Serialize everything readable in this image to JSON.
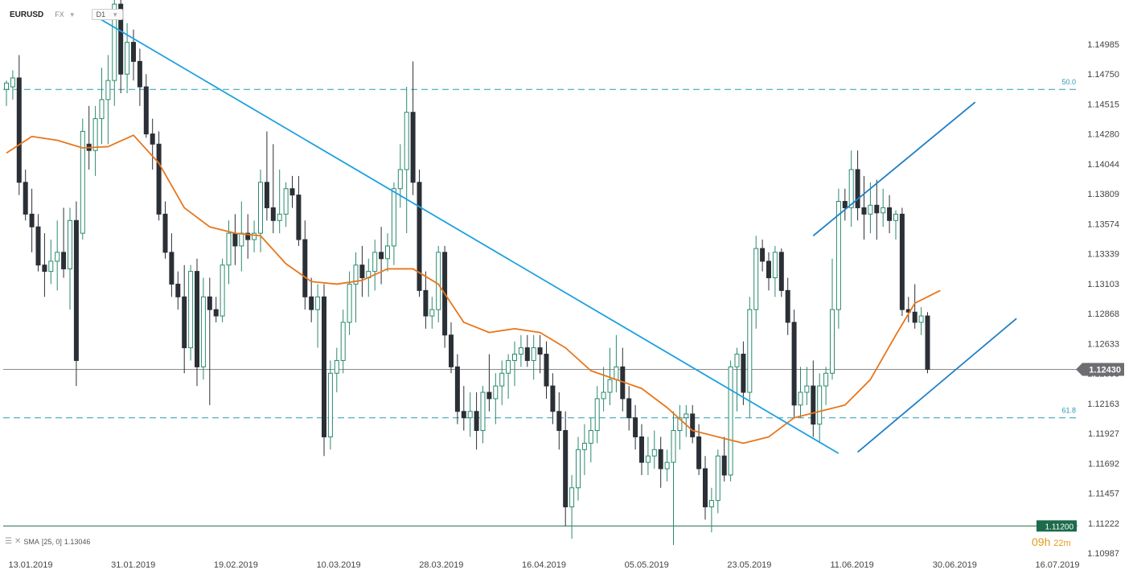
{
  "header": {
    "symbol": "EURUSD",
    "market": "FX",
    "timeframe": "D1"
  },
  "sma_legend": {
    "label": "SMA",
    "params": "[25, 0]",
    "value": "1.13046"
  },
  "countdown": {
    "hours": "09h",
    "minutes": "22m"
  },
  "colors": {
    "bull_fill": "#ffffff",
    "bull_stroke": "#2a8a6e",
    "bear": "#2b2f36",
    "sma": "#e8761b",
    "trendline": "#1ea1e0",
    "channel": "#1f7fc6",
    "fib": "#2a9bb0",
    "current_price_bg": "#6d6e71",
    "support_bg": "#1c6b4a"
  },
  "chart_data": {
    "type": "candlestick",
    "y_range": [
      1.10987,
      1.1522
    ],
    "x_labels": [
      "13.01.2019",
      "31.01.2019",
      "19.02.2019",
      "10.03.2019",
      "28.03.2019",
      "16.04.2019",
      "05.05.2019",
      "23.05.2019",
      "11.06.2019",
      "30.06.2019",
      "16.07.2019"
    ],
    "y_ticks": [
      "1.14985",
      "1.14750",
      "1.14515",
      "1.14280",
      "1.14044",
      "1.13809",
      "1.13574",
      "1.13339",
      "1.13103",
      "1.12868",
      "1.12633",
      "1.12398",
      "1.12163",
      "1.11927",
      "1.11692",
      "1.11457",
      "1.11222",
      "1.10987"
    ],
    "current_price": "1.12430",
    "support_level": "1.11200",
    "fib_levels": [
      {
        "label": "50.0",
        "value": 1.1463
      },
      {
        "label": "61.8",
        "value": 1.1205
      }
    ],
    "candles": [
      {
        "o": 1.1463,
        "h": 1.147,
        "l": 1.145,
        "c": 1.1468
      },
      {
        "o": 1.1465,
        "h": 1.1478,
        "l": 1.1455,
        "c": 1.1472
      },
      {
        "o": 1.1472,
        "h": 1.149,
        "l": 1.138,
        "c": 1.139
      },
      {
        "o": 1.139,
        "h": 1.14,
        "l": 1.136,
        "c": 1.1365
      },
      {
        "o": 1.1365,
        "h": 1.1385,
        "l": 1.1335,
        "c": 1.1355
      },
      {
        "o": 1.1355,
        "h": 1.1365,
        "l": 1.132,
        "c": 1.1325
      },
      {
        "o": 1.1325,
        "h": 1.135,
        "l": 1.13,
        "c": 1.132
      },
      {
        "o": 1.132,
        "h": 1.1345,
        "l": 1.131,
        "c": 1.1328
      },
      {
        "o": 1.1328,
        "h": 1.136,
        "l": 1.1305,
        "c": 1.1335
      },
      {
        "o": 1.1335,
        "h": 1.137,
        "l": 1.1315,
        "c": 1.1322
      },
      {
        "o": 1.1322,
        "h": 1.137,
        "l": 1.129,
        "c": 1.136
      },
      {
        "o": 1.136,
        "h": 1.1375,
        "l": 1.123,
        "c": 1.125
      },
      {
        "o": 1.135,
        "h": 1.144,
        "l": 1.1345,
        "c": 1.143
      },
      {
        "o": 1.142,
        "h": 1.145,
        "l": 1.14,
        "c": 1.1415
      },
      {
        "o": 1.1415,
        "h": 1.145,
        "l": 1.1395,
        "c": 1.144
      },
      {
        "o": 1.144,
        "h": 1.148,
        "l": 1.142,
        "c": 1.1455
      },
      {
        "o": 1.1455,
        "h": 1.149,
        "l": 1.142,
        "c": 1.147
      },
      {
        "o": 1.147,
        "h": 1.154,
        "l": 1.145,
        "c": 1.153
      },
      {
        "o": 1.153,
        "h": 1.1552,
        "l": 1.146,
        "c": 1.1475
      },
      {
        "o": 1.1475,
        "h": 1.1515,
        "l": 1.146,
        "c": 1.15
      },
      {
        "o": 1.15,
        "h": 1.151,
        "l": 1.147,
        "c": 1.1485
      },
      {
        "o": 1.1485,
        "h": 1.1495,
        "l": 1.145,
        "c": 1.1465
      },
      {
        "o": 1.1465,
        "h": 1.1475,
        "l": 1.1425,
        "c": 1.1428
      },
      {
        "o": 1.1428,
        "h": 1.144,
        "l": 1.14,
        "c": 1.142
      },
      {
        "o": 1.142,
        "h": 1.143,
        "l": 1.136,
        "c": 1.1365
      },
      {
        "o": 1.1365,
        "h": 1.1375,
        "l": 1.133,
        "c": 1.1335
      },
      {
        "o": 1.1335,
        "h": 1.135,
        "l": 1.13,
        "c": 1.131
      },
      {
        "o": 1.131,
        "h": 1.132,
        "l": 1.129,
        "c": 1.13
      },
      {
        "o": 1.13,
        "h": 1.1325,
        "l": 1.124,
        "c": 1.126
      },
      {
        "o": 1.126,
        "h": 1.1325,
        "l": 1.125,
        "c": 1.132
      },
      {
        "o": 1.132,
        "h": 1.133,
        "l": 1.123,
        "c": 1.1245
      },
      {
        "o": 1.1245,
        "h": 1.1315,
        "l": 1.1235,
        "c": 1.13
      },
      {
        "o": 1.13,
        "h": 1.1315,
        "l": 1.1215,
        "c": 1.129
      },
      {
        "o": 1.129,
        "h": 1.13,
        "l": 1.128,
        "c": 1.1285
      },
      {
        "o": 1.1285,
        "h": 1.133,
        "l": 1.128,
        "c": 1.1325
      },
      {
        "o": 1.1325,
        "h": 1.136,
        "l": 1.131,
        "c": 1.135
      },
      {
        "o": 1.135,
        "h": 1.1365,
        "l": 1.1325,
        "c": 1.134
      },
      {
        "o": 1.134,
        "h": 1.1375,
        "l": 1.132,
        "c": 1.135
      },
      {
        "o": 1.135,
        "h": 1.1365,
        "l": 1.133,
        "c": 1.1345
      },
      {
        "o": 1.1345,
        "h": 1.136,
        "l": 1.1335,
        "c": 1.135
      },
      {
        "o": 1.135,
        "h": 1.14,
        "l": 1.1335,
        "c": 1.139
      },
      {
        "o": 1.139,
        "h": 1.143,
        "l": 1.136,
        "c": 1.137
      },
      {
        "o": 1.137,
        "h": 1.142,
        "l": 1.135,
        "c": 1.136
      },
      {
        "o": 1.136,
        "h": 1.14,
        "l": 1.135,
        "c": 1.1365
      },
      {
        "o": 1.1365,
        "h": 1.139,
        "l": 1.1355,
        "c": 1.1385
      },
      {
        "o": 1.1385,
        "h": 1.1395,
        "l": 1.137,
        "c": 1.138
      },
      {
        "o": 1.138,
        "h": 1.1395,
        "l": 1.134,
        "c": 1.1345
      },
      {
        "o": 1.1345,
        "h": 1.136,
        "l": 1.129,
        "c": 1.13
      },
      {
        "o": 1.13,
        "h": 1.1315,
        "l": 1.128,
        "c": 1.129
      },
      {
        "o": 1.129,
        "h": 1.131,
        "l": 1.126,
        "c": 1.13
      },
      {
        "o": 1.13,
        "h": 1.131,
        "l": 1.1175,
        "c": 1.119
      },
      {
        "o": 1.119,
        "h": 1.125,
        "l": 1.118,
        "c": 1.124
      },
      {
        "o": 1.124,
        "h": 1.126,
        "l": 1.1225,
        "c": 1.125
      },
      {
        "o": 1.125,
        "h": 1.129,
        "l": 1.124,
        "c": 1.128
      },
      {
        "o": 1.128,
        "h": 1.132,
        "l": 1.127,
        "c": 1.131
      },
      {
        "o": 1.131,
        "h": 1.1335,
        "l": 1.128,
        "c": 1.1325
      },
      {
        "o": 1.1325,
        "h": 1.134,
        "l": 1.13,
        "c": 1.1315
      },
      {
        "o": 1.1315,
        "h": 1.133,
        "l": 1.13,
        "c": 1.132
      },
      {
        "o": 1.132,
        "h": 1.1345,
        "l": 1.1305,
        "c": 1.1335
      },
      {
        "o": 1.1335,
        "h": 1.1355,
        "l": 1.131,
        "c": 1.133
      },
      {
        "o": 1.133,
        "h": 1.135,
        "l": 1.132,
        "c": 1.134
      },
      {
        "o": 1.134,
        "h": 1.139,
        "l": 1.1325,
        "c": 1.1385
      },
      {
        "o": 1.1385,
        "h": 1.142,
        "l": 1.137,
        "c": 1.14
      },
      {
        "o": 1.14,
        "h": 1.1465,
        "l": 1.135,
        "c": 1.1445
      },
      {
        "o": 1.1445,
        "h": 1.1485,
        "l": 1.138,
        "c": 1.139
      },
      {
        "o": 1.139,
        "h": 1.14,
        "l": 1.13,
        "c": 1.1305
      },
      {
        "o": 1.1305,
        "h": 1.132,
        "l": 1.1275,
        "c": 1.1285
      },
      {
        "o": 1.1285,
        "h": 1.13,
        "l": 1.1275,
        "c": 1.129
      },
      {
        "o": 1.129,
        "h": 1.134,
        "l": 1.128,
        "c": 1.1335
      },
      {
        "o": 1.1335,
        "h": 1.134,
        "l": 1.126,
        "c": 1.127
      },
      {
        "o": 1.127,
        "h": 1.128,
        "l": 1.124,
        "c": 1.1245
      },
      {
        "o": 1.1245,
        "h": 1.1255,
        "l": 1.12,
        "c": 1.121
      },
      {
        "o": 1.121,
        "h": 1.123,
        "l": 1.1195,
        "c": 1.1205
      },
      {
        "o": 1.1205,
        "h": 1.1225,
        "l": 1.119,
        "c": 1.121
      },
      {
        "o": 1.121,
        "h": 1.1225,
        "l": 1.118,
        "c": 1.1195
      },
      {
        "o": 1.1195,
        "h": 1.123,
        "l": 1.1185,
        "c": 1.1225
      },
      {
        "o": 1.1225,
        "h": 1.1255,
        "l": 1.121,
        "c": 1.122
      },
      {
        "o": 1.122,
        "h": 1.124,
        "l": 1.12,
        "c": 1.123
      },
      {
        "o": 1.123,
        "h": 1.125,
        "l": 1.1215,
        "c": 1.124
      },
      {
        "o": 1.124,
        "h": 1.1255,
        "l": 1.122,
        "c": 1.125
      },
      {
        "o": 1.125,
        "h": 1.1265,
        "l": 1.123,
        "c": 1.1255
      },
      {
        "o": 1.1255,
        "h": 1.127,
        "l": 1.1245,
        "c": 1.126
      },
      {
        "o": 1.126,
        "h": 1.127,
        "l": 1.1245,
        "c": 1.125
      },
      {
        "o": 1.125,
        "h": 1.127,
        "l": 1.1235,
        "c": 1.126
      },
      {
        "o": 1.126,
        "h": 1.127,
        "l": 1.124,
        "c": 1.1255
      },
      {
        "o": 1.1255,
        "h": 1.1265,
        "l": 1.122,
        "c": 1.123
      },
      {
        "o": 1.123,
        "h": 1.124,
        "l": 1.12,
        "c": 1.121
      },
      {
        "o": 1.121,
        "h": 1.1225,
        "l": 1.118,
        "c": 1.1195
      },
      {
        "o": 1.1195,
        "h": 1.121,
        "l": 1.112,
        "c": 1.1135
      },
      {
        "o": 1.1135,
        "h": 1.116,
        "l": 1.111,
        "c": 1.115
      },
      {
        "o": 1.115,
        "h": 1.119,
        "l": 1.114,
        "c": 1.118
      },
      {
        "o": 1.118,
        "h": 1.12,
        "l": 1.116,
        "c": 1.1185
      },
      {
        "o": 1.1185,
        "h": 1.1205,
        "l": 1.117,
        "c": 1.1195
      },
      {
        "o": 1.1195,
        "h": 1.123,
        "l": 1.1185,
        "c": 1.122
      },
      {
        "o": 1.122,
        "h": 1.1245,
        "l": 1.121,
        "c": 1.1225
      },
      {
        "o": 1.1225,
        "h": 1.126,
        "l": 1.1215,
        "c": 1.1235
      },
      {
        "o": 1.1235,
        "h": 1.127,
        "l": 1.1225,
        "c": 1.1245
      },
      {
        "o": 1.1245,
        "h": 1.126,
        "l": 1.121,
        "c": 1.122
      },
      {
        "o": 1.122,
        "h": 1.123,
        "l": 1.1195,
        "c": 1.1205
      },
      {
        "o": 1.1205,
        "h": 1.1215,
        "l": 1.118,
        "c": 1.119
      },
      {
        "o": 1.119,
        "h": 1.12,
        "l": 1.116,
        "c": 1.117
      },
      {
        "o": 1.117,
        "h": 1.119,
        "l": 1.116,
        "c": 1.1175
      },
      {
        "o": 1.1175,
        "h": 1.1195,
        "l": 1.1165,
        "c": 1.118
      },
      {
        "o": 1.118,
        "h": 1.119,
        "l": 1.115,
        "c": 1.1165
      },
      {
        "o": 1.1165,
        "h": 1.118,
        "l": 1.1155,
        "c": 1.117
      },
      {
        "o": 1.117,
        "h": 1.121,
        "l": 1.1105,
        "c": 1.1195
      },
      {
        "o": 1.1195,
        "h": 1.1215,
        "l": 1.118,
        "c": 1.1205
      },
      {
        "o": 1.1205,
        "h": 1.1215,
        "l": 1.119,
        "c": 1.1208
      },
      {
        "o": 1.1208,
        "h": 1.1215,
        "l": 1.1185,
        "c": 1.119
      },
      {
        "o": 1.119,
        "h": 1.12,
        "l": 1.116,
        "c": 1.1165
      },
      {
        "o": 1.1165,
        "h": 1.1175,
        "l": 1.1125,
        "c": 1.1135
      },
      {
        "o": 1.1135,
        "h": 1.115,
        "l": 1.1115,
        "c": 1.114
      },
      {
        "o": 1.114,
        "h": 1.118,
        "l": 1.113,
        "c": 1.1175
      },
      {
        "o": 1.1175,
        "h": 1.119,
        "l": 1.1155,
        "c": 1.116
      },
      {
        "o": 1.116,
        "h": 1.125,
        "l": 1.1155,
        "c": 1.1245
      },
      {
        "o": 1.1245,
        "h": 1.126,
        "l": 1.121,
        "c": 1.1255
      },
      {
        "o": 1.1255,
        "h": 1.1265,
        "l": 1.1215,
        "c": 1.1225
      },
      {
        "o": 1.1225,
        "h": 1.13,
        "l": 1.1205,
        "c": 1.129
      },
      {
        "o": 1.129,
        "h": 1.1348,
        "l": 1.1275,
        "c": 1.1338
      },
      {
        "o": 1.1338,
        "h": 1.1345,
        "l": 1.132,
        "c": 1.1328
      },
      {
        "o": 1.1328,
        "h": 1.1335,
        "l": 1.1305,
        "c": 1.1315
      },
      {
        "o": 1.1315,
        "h": 1.134,
        "l": 1.13,
        "c": 1.1335
      },
      {
        "o": 1.1335,
        "h": 1.1338,
        "l": 1.13,
        "c": 1.1305
      },
      {
        "o": 1.1305,
        "h": 1.1315,
        "l": 1.127,
        "c": 1.128
      },
      {
        "o": 1.128,
        "h": 1.129,
        "l": 1.1205,
        "c": 1.1215
      },
      {
        "o": 1.1215,
        "h": 1.1245,
        "l": 1.1205,
        "c": 1.1225
      },
      {
        "o": 1.1225,
        "h": 1.1245,
        "l": 1.1215,
        "c": 1.123
      },
      {
        "o": 1.123,
        "h": 1.125,
        "l": 1.119,
        "c": 1.12
      },
      {
        "o": 1.12,
        "h": 1.124,
        "l": 1.1185,
        "c": 1.123
      },
      {
        "o": 1.123,
        "h": 1.1245,
        "l": 1.1215,
        "c": 1.124
      },
      {
        "o": 1.124,
        "h": 1.133,
        "l": 1.1235,
        "c": 1.129
      },
      {
        "o": 1.129,
        "h": 1.1385,
        "l": 1.1275,
        "c": 1.1375
      },
      {
        "o": 1.1375,
        "h": 1.1385,
        "l": 1.136,
        "c": 1.137
      },
      {
        "o": 1.137,
        "h": 1.1415,
        "l": 1.1355,
        "c": 1.14
      },
      {
        "o": 1.14,
        "h": 1.1415,
        "l": 1.136,
        "c": 1.137
      },
      {
        "o": 1.137,
        "h": 1.1395,
        "l": 1.1345,
        "c": 1.1365
      },
      {
        "o": 1.1365,
        "h": 1.139,
        "l": 1.135,
        "c": 1.1372
      },
      {
        "o": 1.1372,
        "h": 1.1392,
        "l": 1.1345,
        "c": 1.1366
      },
      {
        "o": 1.1366,
        "h": 1.1385,
        "l": 1.1355,
        "c": 1.137
      },
      {
        "o": 1.137,
        "h": 1.138,
        "l": 1.135,
        "c": 1.136
      },
      {
        "o": 1.136,
        "h": 1.1368,
        "l": 1.1345,
        "c": 1.1365
      },
      {
        "o": 1.1365,
        "h": 1.137,
        "l": 1.1285,
        "c": 1.129
      },
      {
        "o": 1.129,
        "h": 1.13,
        "l": 1.128,
        "c": 1.1288
      },
      {
        "o": 1.1288,
        "h": 1.131,
        "l": 1.1275,
        "c": 1.128
      },
      {
        "o": 1.128,
        "h": 1.1292,
        "l": 1.127,
        "c": 1.1285
      },
      {
        "o": 1.1285,
        "h": 1.1288,
        "l": 1.124,
        "c": 1.1243
      }
    ],
    "sma_points": [
      [
        0,
        1.1413
      ],
      [
        4,
        1.1426
      ],
      [
        8,
        1.1423
      ],
      [
        12,
        1.1417
      ],
      [
        16,
        1.1418
      ],
      [
        20,
        1.1427
      ],
      [
        24,
        1.1405
      ],
      [
        28,
        1.137
      ],
      [
        32,
        1.1355
      ],
      [
        36,
        1.135
      ],
      [
        40,
        1.1348
      ],
      [
        44,
        1.1326
      ],
      [
        48,
        1.1312
      ],
      [
        52,
        1.131
      ],
      [
        56,
        1.1313
      ],
      [
        60,
        1.1322
      ],
      [
        64,
        1.1322
      ],
      [
        68,
        1.131
      ],
      [
        72,
        1.128
      ],
      [
        76,
        1.1272
      ],
      [
        80,
        1.1275
      ],
      [
        84,
        1.1272
      ],
      [
        88,
        1.126
      ],
      [
        92,
        1.1242
      ],
      [
        96,
        1.1235
      ],
      [
        100,
        1.1228
      ],
      [
        104,
        1.1213
      ],
      [
        108,
        1.1195
      ],
      [
        112,
        1.119
      ],
      [
        116,
        1.1185
      ],
      [
        120,
        1.119
      ],
      [
        124,
        1.1205
      ],
      [
        128,
        1.121
      ],
      [
        132,
        1.1215
      ],
      [
        136,
        1.1235
      ],
      [
        140,
        1.127
      ],
      [
        143,
        1.1295
      ],
      [
        147,
        1.1305
      ]
    ]
  }
}
